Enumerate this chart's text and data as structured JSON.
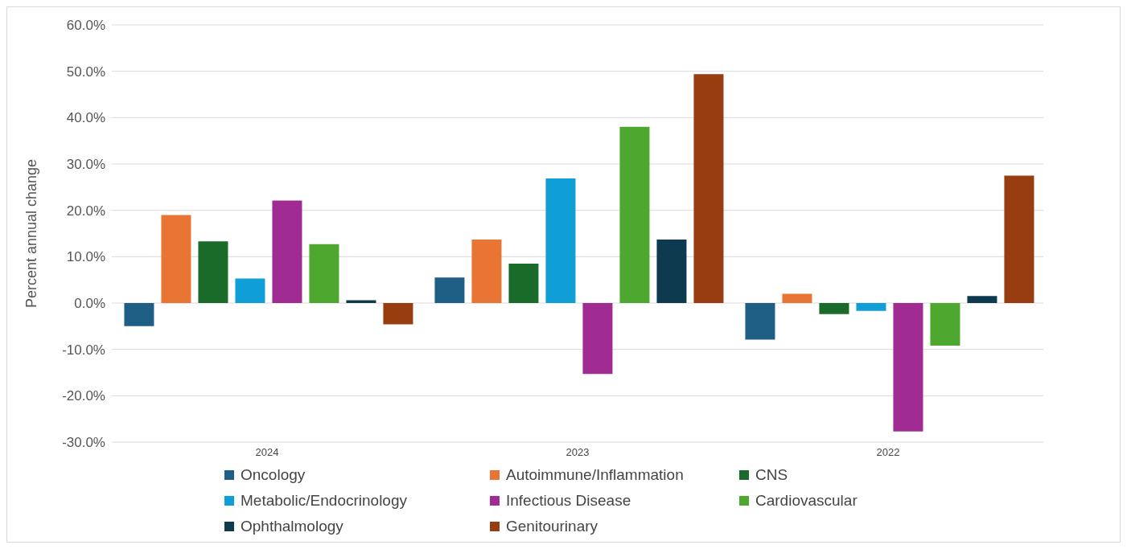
{
  "chart_data": {
    "type": "bar",
    "ylabel": "Percent annual change",
    "categories": [
      "2024",
      "2023",
      "2022"
    ],
    "series": [
      {
        "name": "Oncology",
        "color": "#1f5f86",
        "values": [
          -5.0,
          5.5,
          -7.9
        ]
      },
      {
        "name": "Autoimmune/Inflammation",
        "color": "#e97535",
        "values": [
          19.0,
          13.7,
          2.0
        ]
      },
      {
        "name": "CNS",
        "color": "#1a6b2a",
        "values": [
          13.3,
          8.5,
          -2.4
        ]
      },
      {
        "name": "Metabolic/Endocrinology",
        "color": "#0f9ed5",
        "values": [
          5.3,
          26.9,
          -1.7
        ]
      },
      {
        "name": "Infectious Disease",
        "color": "#a02b93",
        "values": [
          22.1,
          -15.3,
          -27.7
        ]
      },
      {
        "name": "Cardiovascular",
        "color": "#4ea72e",
        "values": [
          12.7,
          38.0,
          -9.2
        ]
      },
      {
        "name": "Ophthalmology",
        "color": "#0e3a50",
        "values": [
          0.6,
          13.7,
          1.5
        ]
      },
      {
        "name": "Genitourinary",
        "color": "#973d10",
        "values": [
          -4.6,
          49.4,
          27.5
        ]
      }
    ],
    "ylim": [
      -30,
      60
    ],
    "yticks": [
      {
        "value": -30,
        "label": "-30.0%"
      },
      {
        "value": -20,
        "label": "-20.0%"
      },
      {
        "value": -10,
        "label": "-10.0%"
      },
      {
        "value": 0,
        "label": "0.0%"
      },
      {
        "value": 10,
        "label": "10.0%"
      },
      {
        "value": 20,
        "label": "20.0%"
      },
      {
        "value": 30,
        "label": "30.0%"
      },
      {
        "value": 40,
        "label": "40.0%"
      },
      {
        "value": 50,
        "label": "50.0%"
      },
      {
        "value": 60,
        "label": "60.0%"
      }
    ],
    "grid": "y",
    "legend": "bottom"
  }
}
